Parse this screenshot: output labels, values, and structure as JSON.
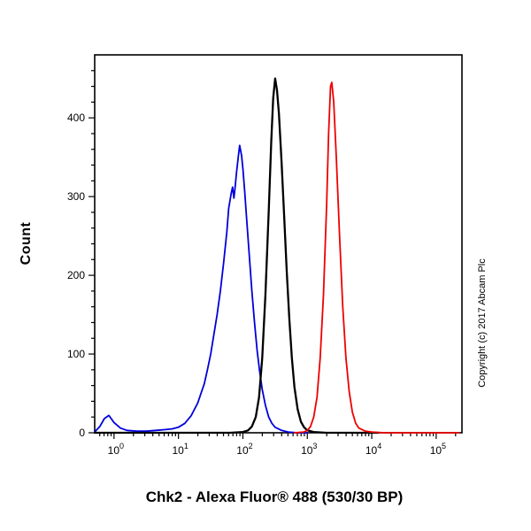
{
  "title": "Chk2 - Alexa Fluor® 488 (530/30 BP)",
  "copyright": "Copyright (c) 2017 Abcam Plc",
  "chart_data": {
    "type": "line",
    "title": "Chk2 - Alexa Fluor® 488 (530/30 BP)",
    "xlabel": "",
    "ylabel": "Count",
    "x_scale": "log10",
    "x_range_log": [
      -0.3,
      5.4
    ],
    "ylim": [
      0,
      480
    ],
    "grid": false,
    "legend": "none",
    "x_tick_base": "10",
    "x_ticks": [
      {
        "log": 0,
        "exp": "0"
      },
      {
        "log": 1,
        "exp": "1"
      },
      {
        "log": 2,
        "exp": "2"
      },
      {
        "log": 3,
        "exp": "3"
      },
      {
        "log": 4,
        "exp": "4"
      },
      {
        "log": 5,
        "exp": "5"
      }
    ],
    "y_ticks": [
      0,
      100,
      200,
      300,
      400
    ],
    "y_minor_step": 20,
    "series": [
      {
        "name": "blue-curve",
        "color": "#0000dd",
        "width": 1.8,
        "points": [
          [
            -0.3,
            1
          ],
          [
            -0.22,
            8
          ],
          [
            -0.15,
            18
          ],
          [
            -0.08,
            22
          ],
          [
            0.0,
            13
          ],
          [
            0.1,
            6
          ],
          [
            0.2,
            3
          ],
          [
            0.35,
            2
          ],
          [
            0.5,
            2
          ],
          [
            0.65,
            3
          ],
          [
            0.8,
            4
          ],
          [
            0.9,
            5
          ],
          [
            1.0,
            7
          ],
          [
            1.1,
            12
          ],
          [
            1.2,
            22
          ],
          [
            1.3,
            38
          ],
          [
            1.35,
            50
          ],
          [
            1.4,
            62
          ],
          [
            1.45,
            80
          ],
          [
            1.5,
            100
          ],
          [
            1.55,
            125
          ],
          [
            1.6,
            150
          ],
          [
            1.65,
            180
          ],
          [
            1.7,
            215
          ],
          [
            1.75,
            255
          ],
          [
            1.78,
            285
          ],
          [
            1.82,
            305
          ],
          [
            1.84,
            312
          ],
          [
            1.86,
            298
          ],
          [
            1.88,
            312
          ],
          [
            1.9,
            330
          ],
          [
            1.93,
            352
          ],
          [
            1.95,
            365
          ],
          [
            1.98,
            352
          ],
          [
            2.0,
            335
          ],
          [
            2.03,
            305
          ],
          [
            2.06,
            270
          ],
          [
            2.1,
            225
          ],
          [
            2.14,
            180
          ],
          [
            2.18,
            140
          ],
          [
            2.22,
            105
          ],
          [
            2.26,
            78
          ],
          [
            2.3,
            55
          ],
          [
            2.35,
            35
          ],
          [
            2.4,
            20
          ],
          [
            2.45,
            12
          ],
          [
            2.5,
            7
          ],
          [
            2.6,
            3
          ],
          [
            2.7,
            1
          ],
          [
            2.85,
            0
          ],
          [
            3.0,
            0
          ]
        ]
      },
      {
        "name": "black-curve",
        "color": "#000000",
        "width": 2.3,
        "points": [
          [
            -0.3,
            0
          ],
          [
            0.0,
            0
          ],
          [
            0.5,
            0
          ],
          [
            1.0,
            0
          ],
          [
            1.5,
            0
          ],
          [
            1.8,
            0
          ],
          [
            2.0,
            1
          ],
          [
            2.08,
            3
          ],
          [
            2.14,
            8
          ],
          [
            2.2,
            20
          ],
          [
            2.25,
            45
          ],
          [
            2.3,
            95
          ],
          [
            2.35,
            175
          ],
          [
            2.4,
            280
          ],
          [
            2.44,
            370
          ],
          [
            2.47,
            425
          ],
          [
            2.5,
            450
          ],
          [
            2.53,
            435
          ],
          [
            2.56,
            405
          ],
          [
            2.6,
            345
          ],
          [
            2.64,
            275
          ],
          [
            2.68,
            205
          ],
          [
            2.72,
            145
          ],
          [
            2.76,
            95
          ],
          [
            2.8,
            58
          ],
          [
            2.85,
            30
          ],
          [
            2.9,
            14
          ],
          [
            2.95,
            7
          ],
          [
            3.0,
            3
          ],
          [
            3.1,
            1
          ],
          [
            3.3,
            0
          ],
          [
            3.7,
            0
          ],
          [
            4.1,
            0
          ]
        ]
      },
      {
        "name": "red-curve",
        "color": "#ee0000",
        "width": 1.8,
        "points": [
          [
            2.8,
            0
          ],
          [
            2.95,
            1
          ],
          [
            3.0,
            3
          ],
          [
            3.05,
            8
          ],
          [
            3.1,
            20
          ],
          [
            3.15,
            45
          ],
          [
            3.2,
            95
          ],
          [
            3.25,
            175
          ],
          [
            3.3,
            290
          ],
          [
            3.33,
            380
          ],
          [
            3.36,
            440
          ],
          [
            3.38,
            445
          ],
          [
            3.41,
            420
          ],
          [
            3.45,
            350
          ],
          [
            3.5,
            250
          ],
          [
            3.55,
            160
          ],
          [
            3.6,
            95
          ],
          [
            3.65,
            52
          ],
          [
            3.7,
            26
          ],
          [
            3.75,
            12
          ],
          [
            3.8,
            6
          ],
          [
            3.9,
            2
          ],
          [
            4.0,
            1
          ],
          [
            4.2,
            0
          ],
          [
            4.6,
            0
          ],
          [
            5.0,
            0
          ],
          [
            5.35,
            0
          ]
        ]
      }
    ]
  }
}
